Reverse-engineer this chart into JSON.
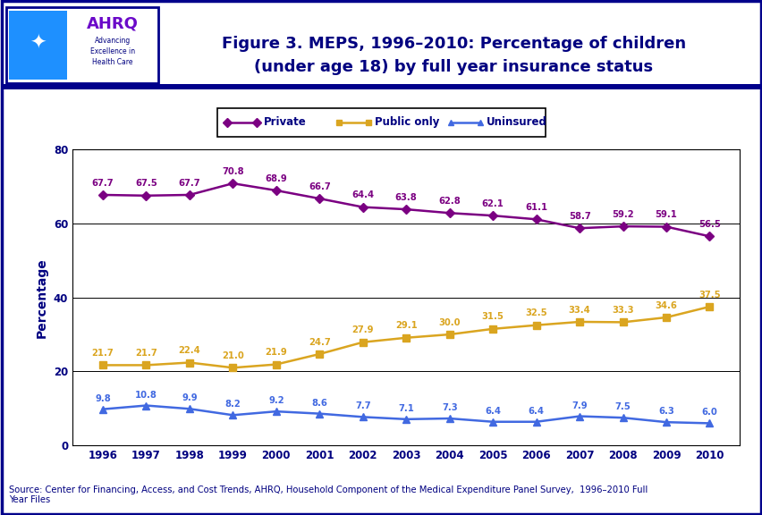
{
  "years": [
    1996,
    1997,
    1998,
    1999,
    2000,
    2001,
    2002,
    2003,
    2004,
    2005,
    2006,
    2007,
    2008,
    2009,
    2010
  ],
  "private": [
    67.7,
    67.5,
    67.7,
    70.8,
    68.9,
    66.7,
    64.4,
    63.8,
    62.8,
    62.1,
    61.1,
    58.7,
    59.2,
    59.1,
    56.5
  ],
  "public_only": [
    21.7,
    21.7,
    22.4,
    21.0,
    21.9,
    24.7,
    27.9,
    29.1,
    30.0,
    31.5,
    32.5,
    33.4,
    33.3,
    34.6,
    37.5
  ],
  "uninsured": [
    9.8,
    10.8,
    9.9,
    8.2,
    9.2,
    8.6,
    7.7,
    7.1,
    7.3,
    6.4,
    6.4,
    7.9,
    7.5,
    6.3,
    6.0
  ],
  "private_color": "#7B0082",
  "public_color": "#DAA520",
  "uninsured_color": "#4169E1",
  "title_line1": "Figure 3. MEPS, 1996–2010: Percentage of children",
  "title_line2": "(under age 18) by full year insurance status",
  "ylabel": "Percentage",
  "ylim": [
    0,
    80
  ],
  "yticks": [
    0,
    20,
    40,
    60,
    80
  ],
  "bg_color": "#FFFFFF",
  "plot_bg_color": "#FFFFFF",
  "source_text": "Source: Center for Financing, Access, and Cost Trends, AHRQ, Household Component of the Medical Expenditure Panel Survey,  1996–2010 Full\nYear Files",
  "header_bar_color": "#00008B",
  "legend_labels": [
    "Private",
    "Public only",
    "Uninsured"
  ],
  "text_navy": "#000080"
}
